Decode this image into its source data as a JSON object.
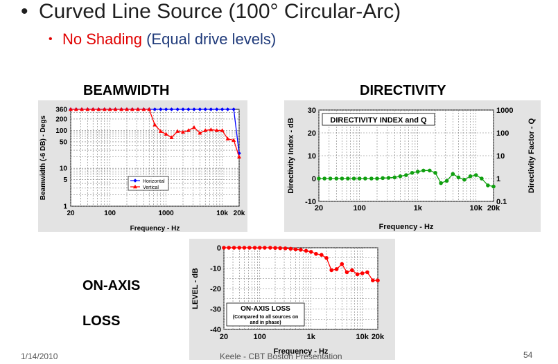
{
  "slide": {
    "bullet1": "Curved Line Source (100° Circular-Arc)",
    "bullet2_red": "No Shading",
    "bullet2_blue": "(Equal drive levels)",
    "beam_title": "BEAMWIDTH",
    "dir_title": "DIRECTIVITY",
    "onaxis_1": "ON-AXIS",
    "onaxis_2": "LOSS",
    "footer_date": "1/14/2010",
    "footer_center": "Keele - CBT Boston Presentation",
    "page_number": "54"
  },
  "chart_data": [
    {
      "type": "line",
      "title": "BEAMWIDTH",
      "xlabel": "Frequency - Hz",
      "ylabel": "Beamwidth (-6 DB) - Degs",
      "x_scale": "log",
      "y_scale": "log",
      "xlim": [
        20,
        20000
      ],
      "ylim": [
        1,
        360
      ],
      "x_ticks": [
        20,
        100,
        1000,
        10000,
        20000
      ],
      "x_tick_labels": [
        "20",
        "100",
        "1000",
        "10k",
        "20k"
      ],
      "y_ticks": [
        1,
        5,
        10,
        50,
        100,
        200,
        360
      ],
      "y_tick_labels": [
        "1",
        "5",
        "10",
        "50",
        "100",
        "200",
        "360"
      ],
      "legend": "center-left",
      "series": [
        {
          "name": "Horizontal",
          "color": "#0000ff",
          "marker": "diamond",
          "x": [
            20,
            25,
            31.5,
            40,
            50,
            63,
            80,
            100,
            125,
            160,
            200,
            250,
            315,
            400,
            500,
            630,
            800,
            1000,
            1250,
            1600,
            2000,
            2500,
            3150,
            4000,
            5000,
            6300,
            8000,
            10000,
            12500,
            16000,
            20000
          ],
          "values": [
            360,
            360,
            360,
            360,
            360,
            360,
            360,
            360,
            360,
            360,
            360,
            360,
            360,
            360,
            360,
            360,
            360,
            360,
            360,
            360,
            360,
            360,
            360,
            360,
            360,
            360,
            360,
            360,
            360,
            360,
            25
          ]
        },
        {
          "name": "Vertical",
          "color": "#ff0000",
          "marker": "triangle",
          "x": [
            20,
            25,
            31.5,
            40,
            50,
            63,
            80,
            100,
            125,
            160,
            200,
            250,
            315,
            400,
            500,
            630,
            800,
            1000,
            1250,
            1600,
            2000,
            2500,
            3150,
            4000,
            5000,
            6300,
            8000,
            10000,
            12500,
            16000,
            20000
          ],
          "values": [
            360,
            360,
            360,
            360,
            360,
            360,
            360,
            360,
            360,
            360,
            360,
            360,
            360,
            360,
            360,
            140,
            95,
            80,
            65,
            95,
            90,
            100,
            120,
            85,
            100,
            105,
            100,
            100,
            60,
            55,
            20
          ]
        }
      ]
    },
    {
      "type": "line",
      "title": "DIRECTIVITY INDEX and Q",
      "xlabel": "Frequency - Hz",
      "ylabel": "Directivity Index - dB",
      "y2label": "Directivity Factor - Q",
      "x_scale": "log",
      "xlim": [
        20,
        20000
      ],
      "ylim": [
        -10,
        30
      ],
      "x_ticks": [
        20,
        100,
        1000,
        10000,
        20000
      ],
      "x_tick_labels": [
        "20",
        "100",
        "1k",
        "10k",
        "20k"
      ],
      "y_ticks": [
        -10,
        0,
        10,
        20,
        30
      ],
      "y_tick_labels": [
        "-10",
        "0",
        "10",
        "20",
        "30"
      ],
      "y2_ticks": [
        0.1,
        1,
        10,
        100,
        1000
      ],
      "y2_tick_labels": [
        "0.1",
        "1",
        "10",
        "100",
        "1000"
      ],
      "series": [
        {
          "color": "#10a010",
          "marker": "circle",
          "x": [
            20,
            25,
            31.5,
            40,
            50,
            63,
            80,
            100,
            125,
            160,
            200,
            250,
            315,
            400,
            500,
            630,
            800,
            1000,
            1250,
            1600,
            2000,
            2500,
            3150,
            4000,
            5000,
            6300,
            8000,
            10000,
            12500,
            16000,
            20000
          ],
          "values": [
            0,
            0,
            0,
            0,
            0,
            0,
            0,
            0,
            0,
            0,
            0,
            0.2,
            0.3,
            0.5,
            1,
            1.5,
            2.5,
            3,
            3.5,
            3.5,
            2.5,
            -2,
            -1,
            2,
            0.5,
            -0.5,
            1,
            1.5,
            0,
            -3,
            -3.5
          ]
        }
      ]
    },
    {
      "type": "line",
      "title": "ON-AXIS LOSS",
      "subtitle": "(Compared to all sources on and in phase)",
      "xlabel": "Frequency - Hz",
      "ylabel": "LEVEL - dB",
      "x_scale": "log",
      "xlim": [
        20,
        20000
      ],
      "ylim": [
        -40,
        0
      ],
      "x_ticks": [
        20,
        100,
        1000,
        10000,
        20000
      ],
      "x_tick_labels": [
        "20",
        "100",
        "1k",
        "10k",
        "20k"
      ],
      "y_ticks": [
        -40,
        -30,
        -20,
        -10,
        0
      ],
      "y_tick_labels": [
        "-40",
        "-30",
        "-20",
        "-10",
        "0"
      ],
      "series": [
        {
          "color": "#ff0000",
          "marker": "circle",
          "x": [
            20,
            25,
            31.5,
            40,
            50,
            63,
            80,
            100,
            125,
            160,
            200,
            250,
            315,
            400,
            500,
            630,
            800,
            1000,
            1250,
            1600,
            2000,
            2500,
            3150,
            4000,
            5000,
            6300,
            8000,
            10000,
            12500,
            16000,
            20000
          ],
          "values": [
            0,
            0,
            0,
            0,
            0,
            0,
            0,
            0,
            0,
            0,
            -0.1,
            -0.2,
            -0.3,
            -0.5,
            -0.8,
            -1,
            -1.5,
            -2,
            -3,
            -3.5,
            -5,
            -11,
            -10.5,
            -8,
            -12,
            -11,
            -13,
            -12.5,
            -12,
            -16,
            -16
          ]
        }
      ]
    }
  ]
}
